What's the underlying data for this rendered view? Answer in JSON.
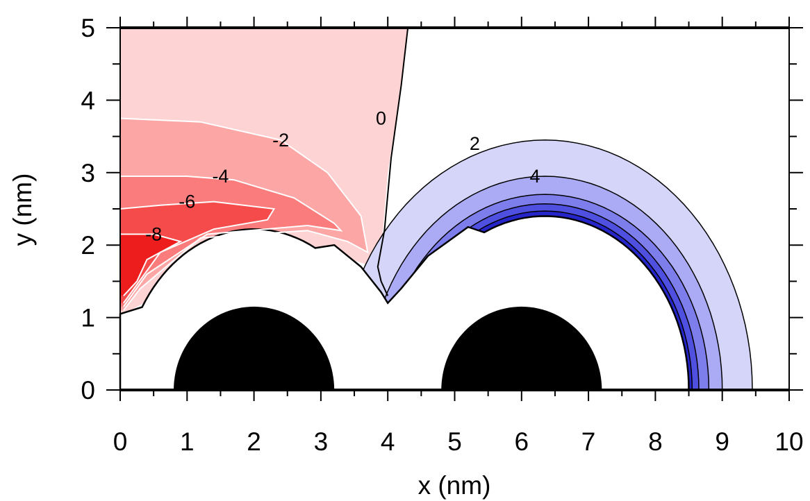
{
  "chart_data": {
    "type": "contour",
    "xlabel": "x  (nm)",
    "ylabel": "y  (nm)",
    "xlim": [
      0,
      10
    ],
    "ylim": [
      0,
      5
    ],
    "x_ticks": [
      "0",
      "1",
      "2",
      "3",
      "4",
      "5",
      "6",
      "7",
      "8",
      "9",
      "10"
    ],
    "y_ticks": [
      "0",
      "1",
      "2",
      "3",
      "4",
      "5"
    ],
    "particles": [
      {
        "center_x": 2,
        "radius": 1.2
      },
      {
        "center_x": 6,
        "radius": 1.2
      }
    ],
    "contour_levels": [
      -8,
      -6,
      -4,
      -2,
      0,
      2,
      4
    ],
    "contour_labels": [
      {
        "text": "-8",
        "x": 0.5,
        "y": 2.15
      },
      {
        "text": "-6",
        "x": 1.0,
        "y": 2.6
      },
      {
        "text": "-4",
        "x": 1.5,
        "y": 2.95
      },
      {
        "text": "-2",
        "x": 2.4,
        "y": 3.45
      },
      {
        "text": "0",
        "x": 3.9,
        "y": 3.75
      },
      {
        "text": "2",
        "x": 5.3,
        "y": 3.4
      },
      {
        "text": "4",
        "x": 6.2,
        "y": 2.95
      }
    ],
    "colors": {
      "neg_lightest": "#fdd3d3",
      "neg_light": "#fca6a6",
      "neg_mid": "#fb7c7c",
      "neg_strong": "#f64b4b",
      "neg_deep": "#ee1d1d",
      "pos_lightest": "#d5d5fa",
      "pos_light": "#aaaaf5",
      "pos_mid": "#7d7deb",
      "pos_strong": "#4f4fe0",
      "pos_deep": "#2525c9",
      "particle": "#000000"
    }
  }
}
